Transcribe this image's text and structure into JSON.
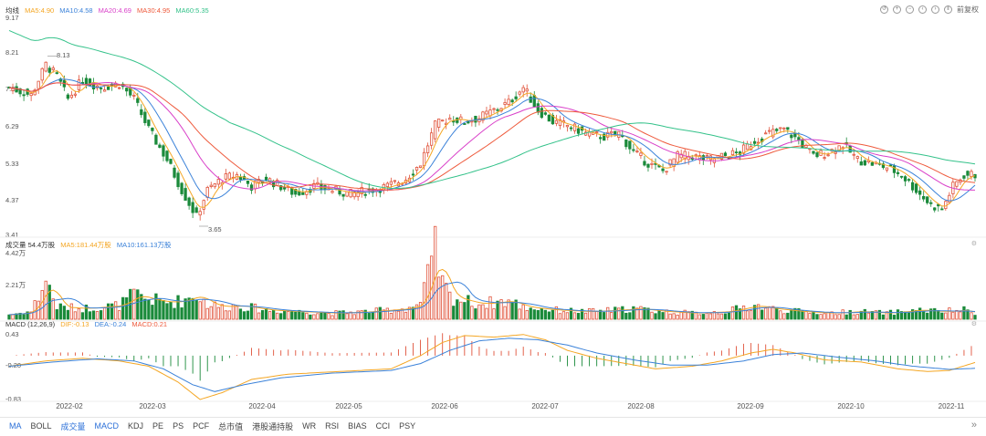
{
  "legend_main": {
    "name": "均线",
    "items": [
      {
        "label": "MA5:4.90",
        "color": "#f4a623"
      },
      {
        "label": "MA10:4.58",
        "color": "#3b82d9"
      },
      {
        "label": "MA20:4.69",
        "color": "#d940c9"
      },
      {
        "label": "MA30:4.95",
        "color": "#ee5a3c"
      },
      {
        "label": "MA60:5.35",
        "color": "#34c28a"
      }
    ]
  },
  "legend_volume": {
    "name": "成交量 54.4万股",
    "items": [
      {
        "label": "MA5:181.44万股",
        "color": "#f4a623"
      },
      {
        "label": "MA10:161.13万股",
        "color": "#3b82d9"
      }
    ]
  },
  "legend_macd": {
    "name": "MACD (12,26,9)",
    "items": [
      {
        "label": "DIF:-0.13",
        "color": "#f4a623"
      },
      {
        "label": "DEA:-0.24",
        "color": "#3b82d9"
      },
      {
        "label": "MACD:0.21",
        "color": "#ee5a3c"
      }
    ]
  },
  "toolbar": {
    "icons": [
      "undo-icon",
      "plus-icon",
      "minus-icon",
      "left-icon",
      "right-icon",
      "pause-icon"
    ],
    "fq_label": "前复权"
  },
  "tabs": [
    "MA",
    "BOLL",
    "成交量",
    "MACD",
    "KDJ",
    "PE",
    "PS",
    "PCF",
    "总市值",
    "港股通持股",
    "WR",
    "RSI",
    "BIAS",
    "CCI",
    "PSY"
  ],
  "expand_label": "»",
  "chart_data": {
    "type": "candlestick",
    "price_axis": {
      "ticks": [
        "9.17",
        "8.21",
        "7.25",
        "6.29",
        "5.33",
        "4.37",
        "3.41"
      ],
      "range": [
        3.41,
        9.17
      ]
    },
    "volume_axis": {
      "ticks": [
        "4.42万",
        "2.21万"
      ],
      "range": [
        0,
        4.42
      ]
    },
    "macd_axis": {
      "ticks": [
        "0.43",
        "-0.20",
        "-0.83"
      ],
      "range": [
        -0.83,
        0.43
      ]
    },
    "x_ticks": [
      "2022-02",
      "2022-03",
      "2022-04",
      "2022-05",
      "2022-06",
      "2022-07",
      "2022-08",
      "2022-09",
      "2022-10",
      "2022-11"
    ],
    "annotations": [
      {
        "label": "8.13",
        "value": 8.13
      },
      {
        "label": "3.65",
        "value": 3.65
      }
    ],
    "close_keypoints": [
      [
        0,
        7.3
      ],
      [
        6,
        7.1
      ],
      [
        10,
        7.9
      ],
      [
        13,
        7.6
      ],
      [
        16,
        7.0
      ],
      [
        20,
        7.5
      ],
      [
        25,
        7.3
      ],
      [
        30,
        7.4
      ],
      [
        34,
        7.0
      ],
      [
        38,
        6.2
      ],
      [
        43,
        5.4
      ],
      [
        47,
        4.6
      ],
      [
        51,
        3.9
      ],
      [
        54,
        4.6
      ],
      [
        58,
        4.9
      ],
      [
        62,
        5.0
      ],
      [
        66,
        4.7
      ],
      [
        70,
        4.9
      ],
      [
        74,
        4.7
      ],
      [
        78,
        4.5
      ],
      [
        83,
        4.7
      ],
      [
        88,
        4.6
      ],
      [
        93,
        4.5
      ],
      [
        98,
        4.6
      ],
      [
        103,
        4.7
      ],
      [
        108,
        4.9
      ],
      [
        112,
        5.3
      ],
      [
        116,
        6.3
      ],
      [
        120,
        6.5
      ],
      [
        124,
        6.4
      ],
      [
        128,
        6.5
      ],
      [
        132,
        6.7
      ],
      [
        136,
        6.9
      ],
      [
        140,
        7.3
      ],
      [
        144,
        6.7
      ],
      [
        148,
        6.4
      ],
      [
        152,
        6.3
      ],
      [
        157,
        6.1
      ],
      [
        162,
        6.0
      ],
      [
        166,
        6.1
      ],
      [
        170,
        5.6
      ],
      [
        174,
        5.3
      ],
      [
        178,
        5.1
      ],
      [
        182,
        5.5
      ],
      [
        186,
        5.5
      ],
      [
        190,
        5.4
      ],
      [
        195,
        5.5
      ],
      [
        199,
        5.6
      ],
      [
        203,
        5.9
      ],
      [
        207,
        6.1
      ],
      [
        211,
        6.2
      ],
      [
        215,
        5.9
      ],
      [
        219,
        5.5
      ],
      [
        223,
        5.6
      ],
      [
        227,
        5.8
      ],
      [
        231,
        5.4
      ],
      [
        235,
        5.3
      ],
      [
        239,
        5.2
      ],
      [
        243,
        5.0
      ],
      [
        247,
        4.6
      ],
      [
        251,
        4.2
      ],
      [
        254,
        4.1
      ],
      [
        257,
        4.7
      ],
      [
        260,
        5.0
      ],
      [
        263,
        5.0
      ]
    ],
    "volume_keypoints": [
      [
        0,
        0.3
      ],
      [
        6,
        0.5
      ],
      [
        8,
        1.5
      ],
      [
        10,
        2.6
      ],
      [
        13,
        0.8
      ],
      [
        20,
        0.7
      ],
      [
        30,
        0.9
      ],
      [
        34,
        1.6
      ],
      [
        38,
        1.3
      ],
      [
        43,
        1.1
      ],
      [
        47,
        1.2
      ],
      [
        51,
        1.6
      ],
      [
        54,
        1.0
      ],
      [
        58,
        0.8
      ],
      [
        62,
        0.9
      ],
      [
        70,
        0.6
      ],
      [
        78,
        0.5
      ],
      [
        88,
        0.4
      ],
      [
        98,
        0.5
      ],
      [
        108,
        0.7
      ],
      [
        112,
        1.0
      ],
      [
        116,
        4.4
      ],
      [
        118,
        2.3
      ],
      [
        120,
        1.5
      ],
      [
        124,
        1.2
      ],
      [
        128,
        1.0
      ],
      [
        136,
        1.2
      ],
      [
        140,
        0.8
      ],
      [
        148,
        0.6
      ],
      [
        157,
        0.5
      ],
      [
        166,
        0.6
      ],
      [
        170,
        0.7
      ],
      [
        178,
        0.5
      ],
      [
        186,
        0.4
      ],
      [
        195,
        0.5
      ],
      [
        203,
        0.9
      ],
      [
        207,
        0.7
      ],
      [
        215,
        0.5
      ],
      [
        223,
        0.4
      ],
      [
        231,
        0.5
      ],
      [
        239,
        0.4
      ],
      [
        247,
        0.6
      ],
      [
        254,
        0.5
      ],
      [
        260,
        0.6
      ],
      [
        263,
        0.3
      ]
    ],
    "dif_keypoints": [
      [
        0,
        -0.2
      ],
      [
        10,
        -0.1
      ],
      [
        20,
        -0.05
      ],
      [
        30,
        -0.1
      ],
      [
        38,
        -0.2
      ],
      [
        46,
        -0.5
      ],
      [
        52,
        -0.83
      ],
      [
        58,
        -0.7
      ],
      [
        66,
        -0.45
      ],
      [
        76,
        -0.35
      ],
      [
        90,
        -0.3
      ],
      [
        104,
        -0.25
      ],
      [
        112,
        0.0
      ],
      [
        118,
        0.25
      ],
      [
        124,
        0.38
      ],
      [
        132,
        0.35
      ],
      [
        140,
        0.4
      ],
      [
        146,
        0.3
      ],
      [
        152,
        0.1
      ],
      [
        160,
        -0.05
      ],
      [
        168,
        -0.15
      ],
      [
        176,
        -0.25
      ],
      [
        186,
        -0.2
      ],
      [
        194,
        -0.1
      ],
      [
        202,
        0.05
      ],
      [
        208,
        0.12
      ],
      [
        214,
        0.05
      ],
      [
        222,
        -0.08
      ],
      [
        232,
        -0.12
      ],
      [
        242,
        -0.25
      ],
      [
        250,
        -0.3
      ],
      [
        256,
        -0.28
      ],
      [
        263,
        -0.13
      ]
    ],
    "dea_keypoints": [
      [
        0,
        -0.2
      ],
      [
        12,
        -0.12
      ],
      [
        24,
        -0.06
      ],
      [
        34,
        -0.1
      ],
      [
        42,
        -0.25
      ],
      [
        50,
        -0.55
      ],
      [
        56,
        -0.68
      ],
      [
        64,
        -0.55
      ],
      [
        74,
        -0.42
      ],
      [
        88,
        -0.33
      ],
      [
        104,
        -0.28
      ],
      [
        112,
        -0.15
      ],
      [
        120,
        0.1
      ],
      [
        128,
        0.28
      ],
      [
        136,
        0.33
      ],
      [
        144,
        0.3
      ],
      [
        152,
        0.2
      ],
      [
        160,
        0.05
      ],
      [
        170,
        -0.08
      ],
      [
        180,
        -0.18
      ],
      [
        190,
        -0.18
      ],
      [
        200,
        -0.1
      ],
      [
        208,
        0.02
      ],
      [
        216,
        0.05
      ],
      [
        226,
        -0.03
      ],
      [
        236,
        -0.1
      ],
      [
        246,
        -0.2
      ],
      [
        256,
        -0.26
      ],
      [
        263,
        -0.24
      ]
    ]
  }
}
